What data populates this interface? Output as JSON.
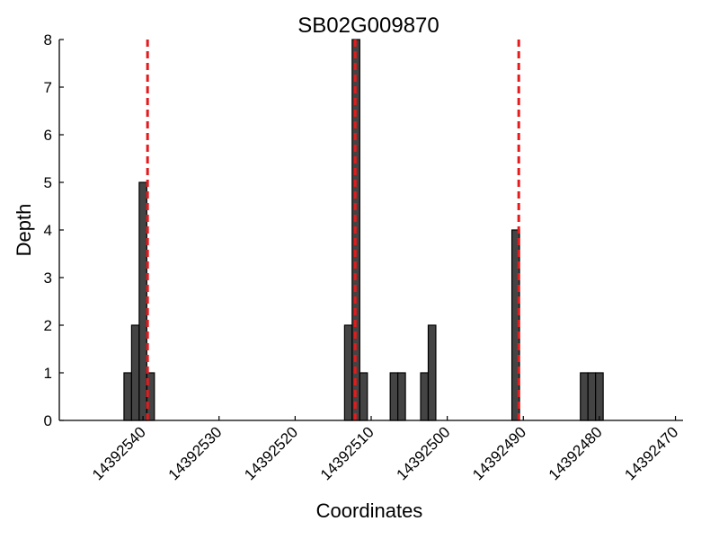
{
  "chart_data": {
    "type": "bar",
    "title": "SB02G009870",
    "xlabel": "Coordinates",
    "ylabel": "Depth",
    "x_reversed": true,
    "xlim": [
      14392551,
      14392469
    ],
    "ylim": [
      0,
      8
    ],
    "x_ticks": [
      14392540,
      14392530,
      14392520,
      14392510,
      14392500,
      14392490,
      14392480,
      14392470
    ],
    "y_ticks": [
      0,
      1,
      2,
      3,
      4,
      5,
      6,
      7,
      8
    ],
    "bin_width": 1,
    "grid": false,
    "colors": {
      "bar_fill": "#444444",
      "bar_edge": "#000000",
      "marker_line": "#e41a1c"
    },
    "bars": [
      {
        "x": 14392542,
        "depth": 1
      },
      {
        "x": 14392541,
        "depth": 2
      },
      {
        "x": 14392540,
        "depth": 5
      },
      {
        "x": 14392539,
        "depth": 1
      },
      {
        "x": 14392513,
        "depth": 2
      },
      {
        "x": 14392512,
        "depth": 8
      },
      {
        "x": 14392511,
        "depth": 1
      },
      {
        "x": 14392507,
        "depth": 1
      },
      {
        "x": 14392506,
        "depth": 1
      },
      {
        "x": 14392503,
        "depth": 1
      },
      {
        "x": 14392502,
        "depth": 2
      },
      {
        "x": 14392491,
        "depth": 4
      },
      {
        "x": 14392482,
        "depth": 1
      },
      {
        "x": 14392481,
        "depth": 1
      },
      {
        "x": 14392480,
        "depth": 1
      }
    ],
    "marker_lines_x": [
      14392539.4,
      14392512.1,
      14392490.6
    ]
  }
}
